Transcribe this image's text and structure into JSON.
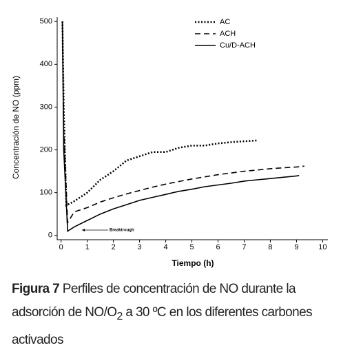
{
  "chart_data": {
    "type": "line",
    "xlabel": "Tiempo (h)",
    "ylabel": "Concentración de NO (ppm)",
    "xlim": [
      -0.15,
      10.2
    ],
    "ylim": [
      -10,
      510
    ],
    "xticks": [
      0,
      1,
      2,
      3,
      4,
      5,
      6,
      7,
      8,
      9,
      10
    ],
    "yticks": [
      0,
      100,
      200,
      300,
      400,
      500
    ],
    "legend": "upper right",
    "annotation": "Breaktrough",
    "series": [
      {
        "name": "AC",
        "color": "#000000",
        "style": "dotted",
        "x": [
          0.05,
          0.1,
          0.2,
          0.5,
          1,
          1.5,
          2,
          2.5,
          3,
          3.5,
          4,
          4.5,
          5,
          5.5,
          6,
          6.5,
          7,
          7.5
        ],
        "values": [
          500,
          300,
          70,
          80,
          100,
          130,
          150,
          175,
          185,
          195,
          195,
          205,
          210,
          210,
          215,
          218,
          220,
          222
        ]
      },
      {
        "name": "ACH",
        "color": "#000000",
        "style": "dashed",
        "x": [
          0.05,
          0.1,
          0.25,
          0.5,
          1,
          1.5,
          2,
          2.5,
          3,
          3.5,
          4,
          4.5,
          5,
          5.5,
          6,
          6.5,
          7,
          7.5,
          8,
          8.5,
          9,
          9.3
        ],
        "values": [
          500,
          250,
          30,
          55,
          65,
          78,
          88,
          97,
          105,
          113,
          120,
          126,
          132,
          137,
          142,
          146,
          150,
          153,
          156,
          158,
          160,
          162
        ]
      },
      {
        "name": "Cu/D-ACH",
        "color": "#000000",
        "style": "solid",
        "x": [
          0.05,
          0.1,
          0.25,
          0.5,
          1,
          1.5,
          2,
          2.5,
          3,
          3.5,
          4,
          4.5,
          5,
          5.5,
          6,
          6.5,
          7,
          7.5,
          8,
          8.5,
          9,
          9.1
        ],
        "values": [
          500,
          200,
          10,
          20,
          35,
          50,
          62,
          72,
          82,
          89,
          96,
          103,
          108,
          114,
          118,
          122,
          127,
          130,
          133,
          136,
          139,
          140
        ]
      }
    ]
  },
  "caption": {
    "label": "Figura 7",
    "text_before": " Perfiles de concentración de NO durante la adsorción de NO/O",
    "subscript": "2",
    "text_after": " a 30 ºC en los diferentes carbones activados"
  }
}
